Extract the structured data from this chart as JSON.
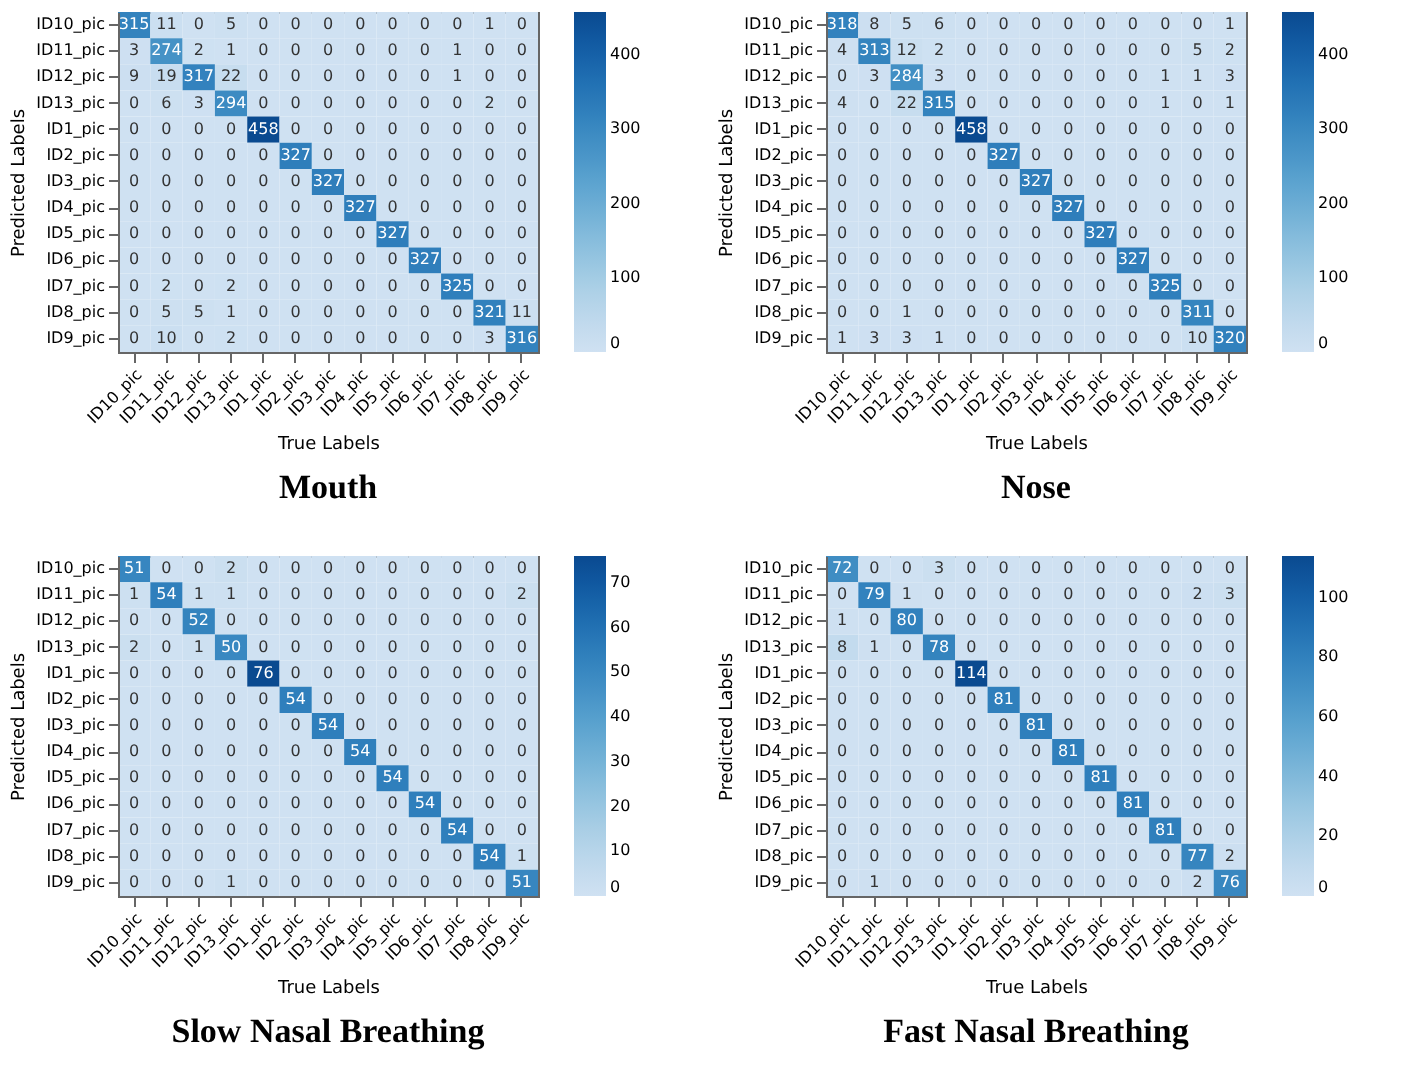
{
  "chart_data": [
    {
      "type": "heatmap",
      "title": "Mouth",
      "xlabel": "True Labels",
      "ylabel": "Predicted Labels",
      "data_labels": true,
      "categories": [
        "ID10_pic",
        "ID11_pic",
        "ID12_pic",
        "ID13_pic",
        "ID1_pic",
        "ID2_pic",
        "ID3_pic",
        "ID4_pic",
        "ID5_pic",
        "ID6_pic",
        "ID7_pic",
        "ID8_pic",
        "ID9_pic"
      ],
      "y_categories": [
        "ID10_pic",
        "ID11_pic",
        "ID12_pic",
        "ID13_pic",
        "ID1_pic",
        "ID2_pic",
        "ID3_pic",
        "ID4_pic",
        "ID5_pic",
        "ID6_pic",
        "ID7_pic",
        "ID8_pic",
        "ID9_pic"
      ],
      "clim": [
        0,
        458
      ],
      "cticks": [
        0,
        100,
        200,
        300,
        400
      ],
      "cells": [
        [
          315,
          11,
          0,
          5,
          0,
          0,
          0,
          0,
          0,
          0,
          0,
          1,
          0
        ],
        [
          3,
          274,
          2,
          1,
          0,
          0,
          0,
          0,
          0,
          0,
          1,
          0,
          0
        ],
        [
          9,
          19,
          317,
          22,
          0,
          0,
          0,
          0,
          0,
          0,
          1,
          0,
          0
        ],
        [
          0,
          6,
          3,
          294,
          0,
          0,
          0,
          0,
          0,
          0,
          0,
          2,
          0
        ],
        [
          0,
          0,
          0,
          0,
          458,
          0,
          0,
          0,
          0,
          0,
          0,
          0,
          0
        ],
        [
          0,
          0,
          0,
          0,
          0,
          327,
          0,
          0,
          0,
          0,
          0,
          0,
          0
        ],
        [
          0,
          0,
          0,
          0,
          0,
          0,
          327,
          0,
          0,
          0,
          0,
          0,
          0
        ],
        [
          0,
          0,
          0,
          0,
          0,
          0,
          0,
          327,
          0,
          0,
          0,
          0,
          0
        ],
        [
          0,
          0,
          0,
          0,
          0,
          0,
          0,
          0,
          327,
          0,
          0,
          0,
          0
        ],
        [
          0,
          0,
          0,
          0,
          0,
          0,
          0,
          0,
          0,
          327,
          0,
          0,
          0
        ],
        [
          0,
          2,
          0,
          2,
          0,
          0,
          0,
          0,
          0,
          0,
          325,
          0,
          0
        ],
        [
          0,
          5,
          5,
          1,
          0,
          0,
          0,
          0,
          0,
          0,
          0,
          321,
          11
        ],
        [
          0,
          10,
          0,
          2,
          0,
          0,
          0,
          0,
          0,
          0,
          0,
          3,
          316
        ]
      ]
    },
    {
      "type": "heatmap",
      "title": "Nose",
      "xlabel": "True Labels",
      "ylabel": "Predicted Labels",
      "data_labels": true,
      "categories": [
        "ID10_pic",
        "ID11_pic",
        "ID12_pic",
        "ID13_pic",
        "ID1_pic",
        "ID2_pic",
        "ID3_pic",
        "ID4_pic",
        "ID5_pic",
        "ID6_pic",
        "ID7_pic",
        "ID8_pic",
        "ID9_pic"
      ],
      "y_categories": [
        "ID10_pic",
        "ID11_pic",
        "ID12_pic",
        "ID13_pic",
        "ID1_pic",
        "ID2_pic",
        "ID3_pic",
        "ID4_pic",
        "ID5_pic",
        "ID6_pic",
        "ID7_pic",
        "ID8_pic",
        "ID9_pic"
      ],
      "clim": [
        0,
        458
      ],
      "cticks": [
        0,
        100,
        200,
        300,
        400
      ],
      "cells": [
        [
          318,
          8,
          5,
          6,
          0,
          0,
          0,
          0,
          0,
          0,
          0,
          0,
          1
        ],
        [
          4,
          313,
          12,
          2,
          0,
          0,
          0,
          0,
          0,
          0,
          0,
          5,
          2
        ],
        [
          0,
          3,
          284,
          3,
          0,
          0,
          0,
          0,
          0,
          0,
          1,
          1,
          3
        ],
        [
          4,
          0,
          22,
          315,
          0,
          0,
          0,
          0,
          0,
          0,
          1,
          0,
          1
        ],
        [
          0,
          0,
          0,
          0,
          458,
          0,
          0,
          0,
          0,
          0,
          0,
          0,
          0
        ],
        [
          0,
          0,
          0,
          0,
          0,
          327,
          0,
          0,
          0,
          0,
          0,
          0,
          0
        ],
        [
          0,
          0,
          0,
          0,
          0,
          0,
          327,
          0,
          0,
          0,
          0,
          0,
          0
        ],
        [
          0,
          0,
          0,
          0,
          0,
          0,
          0,
          327,
          0,
          0,
          0,
          0,
          0
        ],
        [
          0,
          0,
          0,
          0,
          0,
          0,
          0,
          0,
          327,
          0,
          0,
          0,
          0
        ],
        [
          0,
          0,
          0,
          0,
          0,
          0,
          0,
          0,
          0,
          327,
          0,
          0,
          0
        ],
        [
          0,
          0,
          0,
          0,
          0,
          0,
          0,
          0,
          0,
          0,
          325,
          0,
          0
        ],
        [
          0,
          0,
          1,
          0,
          0,
          0,
          0,
          0,
          0,
          0,
          0,
          311,
          0
        ],
        [
          1,
          3,
          3,
          1,
          0,
          0,
          0,
          0,
          0,
          0,
          0,
          10,
          320
        ]
      ]
    },
    {
      "type": "heatmap",
      "title": "Slow Nasal Breathing",
      "xlabel": "True Labels",
      "ylabel": "Predicted Labels",
      "data_labels": true,
      "categories": [
        "ID10_pic",
        "ID11_pic",
        "ID12_pic",
        "ID13_pic",
        "ID1_pic",
        "ID2_pic",
        "ID3_pic",
        "ID4_pic",
        "ID5_pic",
        "ID6_pic",
        "ID7_pic",
        "ID8_pic",
        "ID9_pic"
      ],
      "y_categories": [
        "ID10_pic",
        "ID11_pic",
        "ID12_pic",
        "ID13_pic",
        "ID1_pic",
        "ID2_pic",
        "ID3_pic",
        "ID4_pic",
        "ID5_pic",
        "ID6_pic",
        "ID7_pic",
        "ID8_pic",
        "ID9_pic"
      ],
      "clim": [
        0,
        76
      ],
      "cticks": [
        0,
        10,
        20,
        30,
        40,
        50,
        60,
        70
      ],
      "cells": [
        [
          51,
          0,
          0,
          2,
          0,
          0,
          0,
          0,
          0,
          0,
          0,
          0,
          0
        ],
        [
          1,
          54,
          1,
          1,
          0,
          0,
          0,
          0,
          0,
          0,
          0,
          0,
          2
        ],
        [
          0,
          0,
          52,
          0,
          0,
          0,
          0,
          0,
          0,
          0,
          0,
          0,
          0
        ],
        [
          2,
          0,
          1,
          50,
          0,
          0,
          0,
          0,
          0,
          0,
          0,
          0,
          0
        ],
        [
          0,
          0,
          0,
          0,
          76,
          0,
          0,
          0,
          0,
          0,
          0,
          0,
          0
        ],
        [
          0,
          0,
          0,
          0,
          0,
          54,
          0,
          0,
          0,
          0,
          0,
          0,
          0
        ],
        [
          0,
          0,
          0,
          0,
          0,
          0,
          54,
          0,
          0,
          0,
          0,
          0,
          0
        ],
        [
          0,
          0,
          0,
          0,
          0,
          0,
          0,
          54,
          0,
          0,
          0,
          0,
          0
        ],
        [
          0,
          0,
          0,
          0,
          0,
          0,
          0,
          0,
          54,
          0,
          0,
          0,
          0
        ],
        [
          0,
          0,
          0,
          0,
          0,
          0,
          0,
          0,
          0,
          54,
          0,
          0,
          0
        ],
        [
          0,
          0,
          0,
          0,
          0,
          0,
          0,
          0,
          0,
          0,
          54,
          0,
          0
        ],
        [
          0,
          0,
          0,
          0,
          0,
          0,
          0,
          0,
          0,
          0,
          0,
          54,
          1
        ],
        [
          0,
          0,
          0,
          1,
          0,
          0,
          0,
          0,
          0,
          0,
          0,
          0,
          51
        ]
      ]
    },
    {
      "type": "heatmap",
      "title": "Fast Nasal Breathing",
      "xlabel": "True Labels",
      "ylabel": "Predicted Labels",
      "data_labels": true,
      "categories": [
        "ID10_pic",
        "ID11_pic",
        "ID12_pic",
        "ID13_pic",
        "ID1_pic",
        "ID2_pic",
        "ID3_pic",
        "ID4_pic",
        "ID5_pic",
        "ID6_pic",
        "ID7_pic",
        "ID8_pic",
        "ID9_pic"
      ],
      "y_categories": [
        "ID10_pic",
        "ID11_pic",
        "ID12_pic",
        "ID13_pic",
        "ID1_pic",
        "ID2_pic",
        "ID3_pic",
        "ID4_pic",
        "ID5_pic",
        "ID6_pic",
        "ID7_pic",
        "ID8_pic",
        "ID9_pic"
      ],
      "clim": [
        0,
        114
      ],
      "cticks": [
        0,
        20,
        40,
        60,
        80,
        100
      ],
      "cells": [
        [
          72,
          0,
          0,
          3,
          0,
          0,
          0,
          0,
          0,
          0,
          0,
          0,
          0
        ],
        [
          0,
          79,
          1,
          0,
          0,
          0,
          0,
          0,
          0,
          0,
          0,
          2,
          3
        ],
        [
          1,
          0,
          80,
          0,
          0,
          0,
          0,
          0,
          0,
          0,
          0,
          0,
          0
        ],
        [
          8,
          1,
          0,
          78,
          0,
          0,
          0,
          0,
          0,
          0,
          0,
          0,
          0
        ],
        [
          0,
          0,
          0,
          0,
          114,
          0,
          0,
          0,
          0,
          0,
          0,
          0,
          0
        ],
        [
          0,
          0,
          0,
          0,
          0,
          81,
          0,
          0,
          0,
          0,
          0,
          0,
          0
        ],
        [
          0,
          0,
          0,
          0,
          0,
          0,
          81,
          0,
          0,
          0,
          0,
          0,
          0
        ],
        [
          0,
          0,
          0,
          0,
          0,
          0,
          0,
          81,
          0,
          0,
          0,
          0,
          0
        ],
        [
          0,
          0,
          0,
          0,
          0,
          0,
          0,
          0,
          81,
          0,
          0,
          0,
          0
        ],
        [
          0,
          0,
          0,
          0,
          0,
          0,
          0,
          0,
          0,
          81,
          0,
          0,
          0
        ],
        [
          0,
          0,
          0,
          0,
          0,
          0,
          0,
          0,
          0,
          0,
          81,
          0,
          0
        ],
        [
          0,
          0,
          0,
          0,
          0,
          0,
          0,
          0,
          0,
          0,
          0,
          77,
          2
        ],
        [
          0,
          1,
          0,
          0,
          0,
          0,
          0,
          0,
          0,
          0,
          0,
          2,
          76
        ]
      ]
    }
  ]
}
